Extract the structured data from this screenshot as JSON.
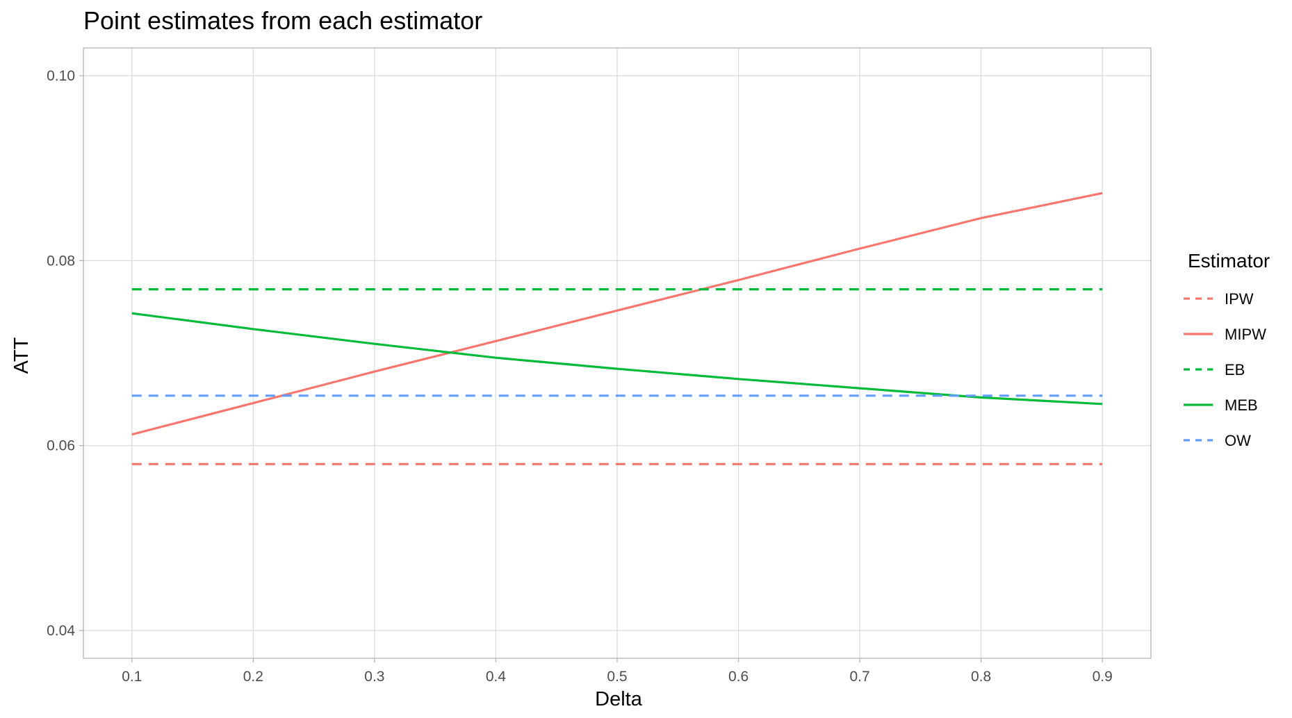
{
  "chart_data": {
    "type": "line",
    "title": "Point estimates from each estimator",
    "xlabel": "Delta",
    "ylabel": "ATT",
    "xlim": [
      0.06,
      0.94
    ],
    "ylim": [
      0.037,
      0.103
    ],
    "x_ticks": [
      "0.1",
      "0.2",
      "0.3",
      "0.4",
      "0.5",
      "0.6",
      "0.7",
      "0.8",
      "0.9"
    ],
    "y_ticks": [
      "0.04",
      "0.06",
      "0.08",
      "0.10"
    ],
    "grid": true,
    "legend_title": "Estimator",
    "legend_position": "right",
    "x": [
      0.1,
      0.2,
      0.3,
      0.4,
      0.5,
      0.6,
      0.7,
      0.8,
      0.9
    ],
    "series": [
      {
        "name": "IPW",
        "color": "#F8766D",
        "line_style": "dashed",
        "values": [
          0.058,
          0.058,
          0.058,
          0.058,
          0.058,
          0.058,
          0.058,
          0.058,
          0.058
        ]
      },
      {
        "name": "MIPW",
        "color": "#F8766D",
        "line_style": "solid",
        "values": [
          0.0612,
          0.0646,
          0.068,
          0.0713,
          0.0746,
          0.0779,
          0.0813,
          0.0846,
          0.0873
        ]
      },
      {
        "name": "EB",
        "color": "#00BA38",
        "line_style": "dashed",
        "values": [
          0.0769,
          0.0769,
          0.0769,
          0.0769,
          0.0769,
          0.0769,
          0.0769,
          0.0769,
          0.0769
        ]
      },
      {
        "name": "MEB",
        "color": "#00BA38",
        "line_style": "solid",
        "values": [
          0.0743,
          0.0726,
          0.071,
          0.0695,
          0.0683,
          0.0672,
          0.0662,
          0.0652,
          0.0645
        ]
      },
      {
        "name": "OW",
        "color": "#619CFF",
        "line_style": "dashed",
        "values": [
          0.0654,
          0.0654,
          0.0654,
          0.0654,
          0.0654,
          0.0654,
          0.0654,
          0.0654,
          0.0654
        ]
      }
    ]
  }
}
